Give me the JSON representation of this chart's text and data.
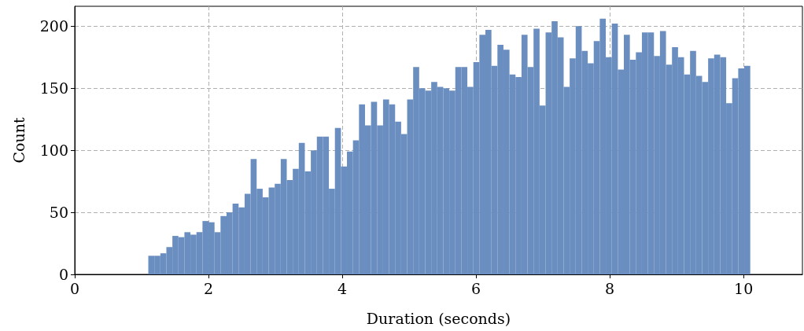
{
  "chart_data": {
    "type": "histogram",
    "xlabel": "Duration (seconds)",
    "ylabel": "Count",
    "color": "#6a8ebf",
    "bins": [
      1.1,
      1.19,
      1.28,
      1.37,
      1.46,
      1.55,
      1.64,
      1.73,
      1.82,
      1.91,
      2,
      2.09,
      2.18,
      2.27,
      2.36,
      2.45,
      2.54,
      2.63,
      2.72,
      2.81,
      2.9,
      2.99,
      3.08,
      3.17,
      3.26,
      3.35,
      3.44,
      3.53,
      3.62,
      3.71,
      3.8,
      3.89,
      3.98,
      4.07,
      4.16,
      4.25,
      4.34,
      4.43,
      4.52,
      4.61,
      4.7,
      4.79,
      4.88,
      4.97,
      5.06,
      5.15,
      5.24,
      5.33,
      5.42,
      5.51,
      5.6,
      5.69,
      5.78,
      5.87,
      5.96,
      6.05,
      6.14,
      6.23,
      6.32,
      6.41,
      6.5,
      6.59,
      6.68,
      6.77,
      6.86,
      6.95,
      7.04,
      7.13,
      7.22,
      7.31,
      7.4,
      7.49,
      7.58,
      7.67,
      7.76,
      7.85,
      7.94,
      8.03,
      8.12,
      8.21,
      8.3,
      8.39,
      8.48,
      8.57,
      8.66,
      8.75,
      8.84,
      8.93,
      9.02,
      9.11,
      9.2,
      9.29,
      9.38,
      9.47,
      9.56,
      9.65,
      9.74,
      9.83,
      9.92,
      10.01,
      10.1
    ],
    "values": [
      15,
      15,
      17,
      22,
      31,
      30,
      34,
      32,
      34,
      43,
      42,
      34,
      47,
      50,
      57,
      54,
      65,
      93,
      69,
      62,
      70,
      73,
      93,
      76,
      85,
      106,
      83,
      100,
      111,
      111,
      69,
      118,
      87,
      99,
      108,
      137,
      120,
      139,
      120,
      141,
      137,
      123,
      113,
      141,
      167,
      150,
      148,
      155,
      151,
      150,
      148,
      167,
      167,
      151,
      171,
      193,
      197,
      168,
      185,
      181,
      161,
      159,
      193,
      167,
      198,
      136,
      195,
      204,
      191,
      151,
      174,
      200,
      180,
      170,
      188,
      206,
      175,
      202,
      165,
      193,
      173,
      179,
      195,
      195,
      176,
      196,
      169,
      183,
      175,
      161,
      180,
      160,
      155,
      174,
      177,
      175,
      138,
      158,
      166,
      168
    ],
    "xlim": [
      0,
      10.88
    ],
    "ylim": [
      0,
      216
    ],
    "xticks": [
      0,
      2,
      4,
      6,
      8,
      10
    ],
    "yticks": [
      0,
      50,
      100,
      150,
      200
    ],
    "grid": true
  }
}
